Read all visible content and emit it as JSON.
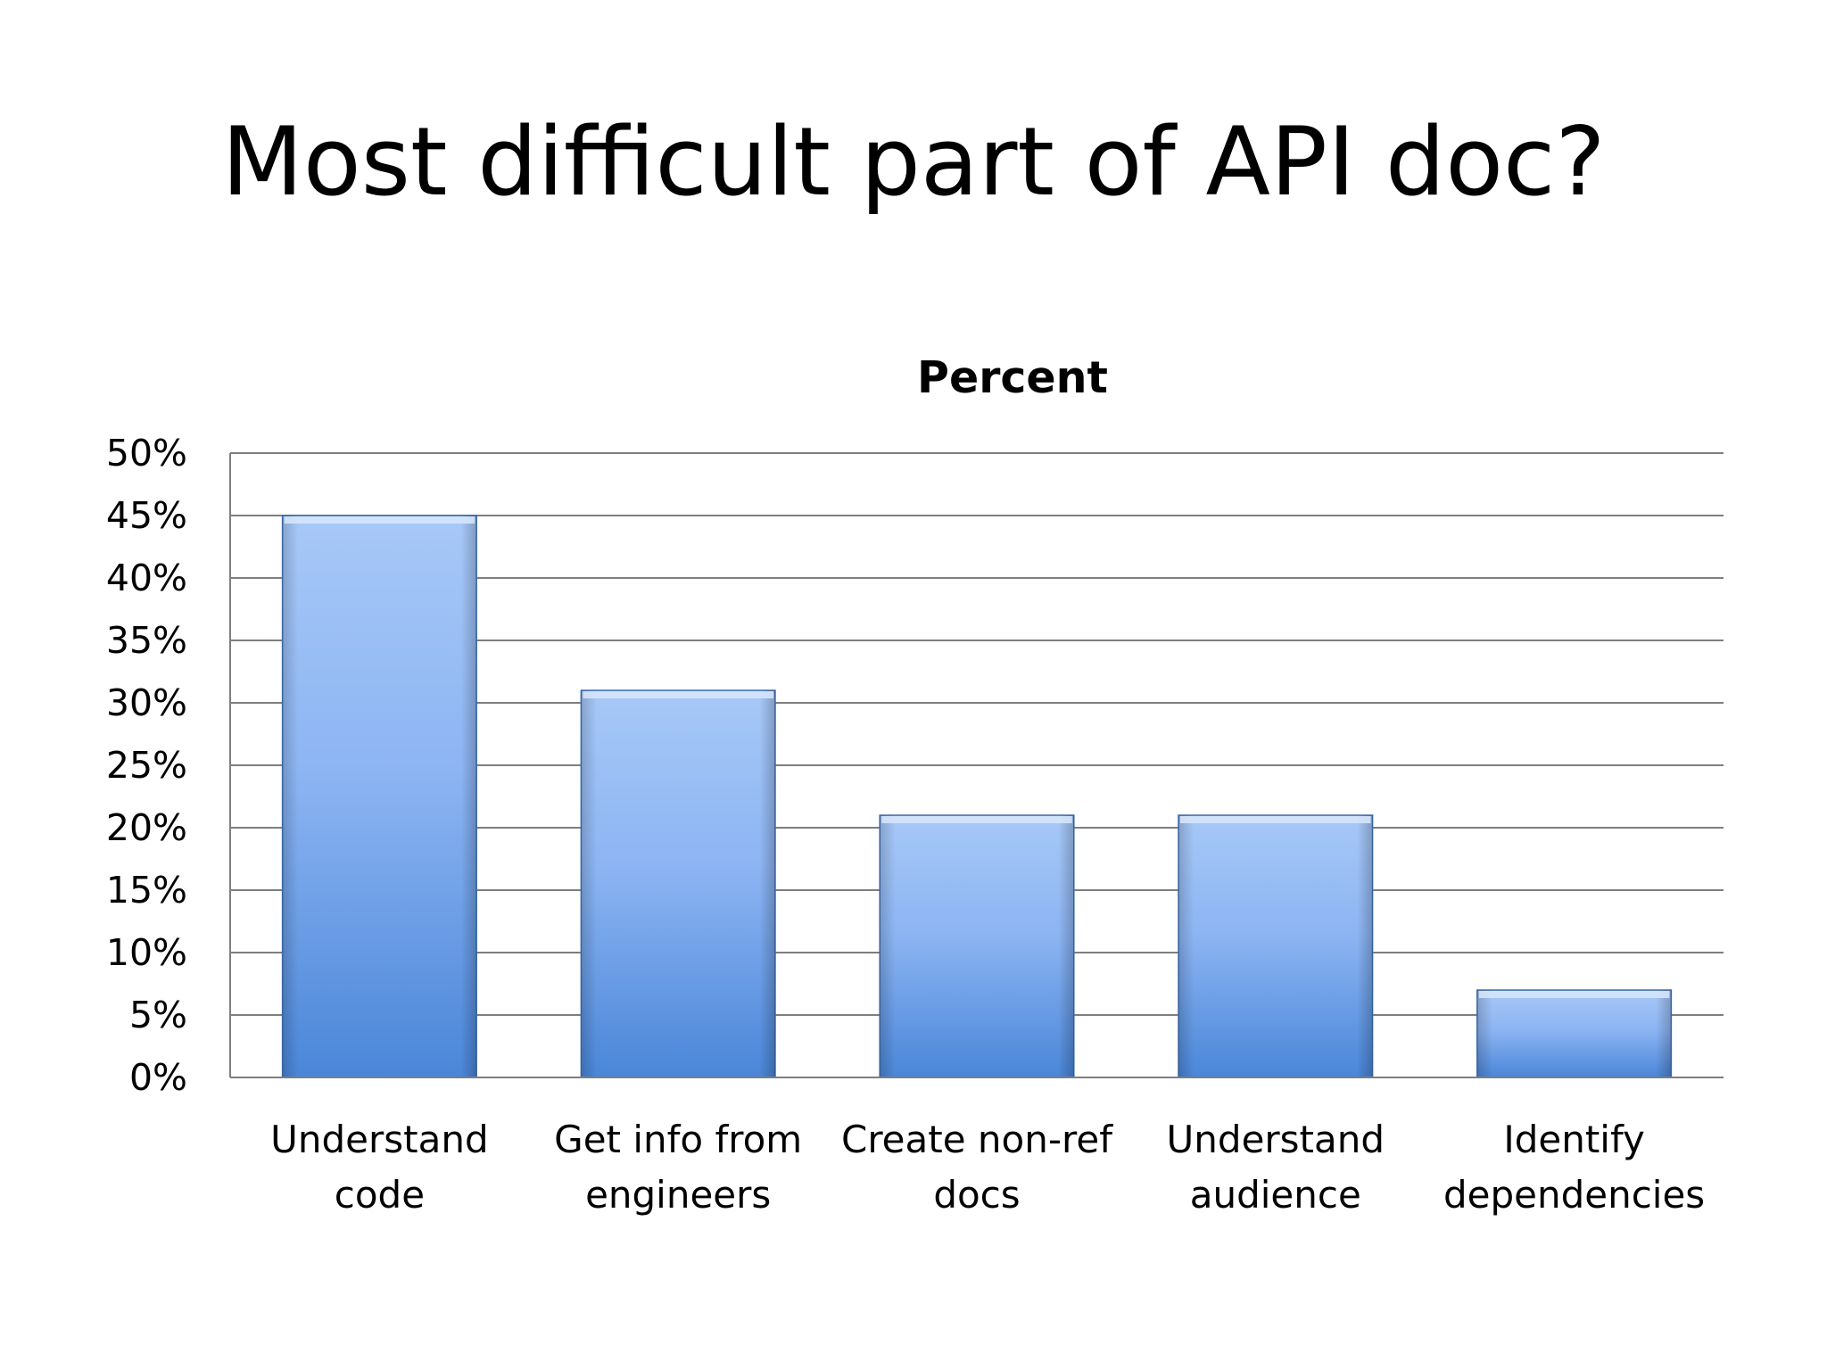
{
  "slide": {
    "title": "Most difficult part of API doc?"
  },
  "chart_data": {
    "type": "bar",
    "title": "Percent",
    "categories": [
      [
        "Understand",
        "code"
      ],
      [
        "Get info from",
        "engineers"
      ],
      [
        "Create non-ref",
        "docs"
      ],
      [
        "Understand",
        "audience"
      ],
      [
        "Identify",
        "dependencies"
      ]
    ],
    "series": [
      {
        "values": [
          45,
          31,
          21,
          21,
          7
        ]
      }
    ],
    "ylim": [
      0,
      50
    ],
    "yticks": [
      0,
      5,
      10,
      15,
      20,
      25,
      30,
      35,
      40,
      45,
      50
    ],
    "ytick_suffix": "%",
    "grid": true,
    "legend": "none",
    "colors": {
      "bar_top": "#a7c8f7",
      "bar_bottom": "#4a86d8",
      "bar_edge": "#3f6fb0",
      "grid": "#7f7f7f",
      "axis": "#7f7f7f"
    }
  }
}
